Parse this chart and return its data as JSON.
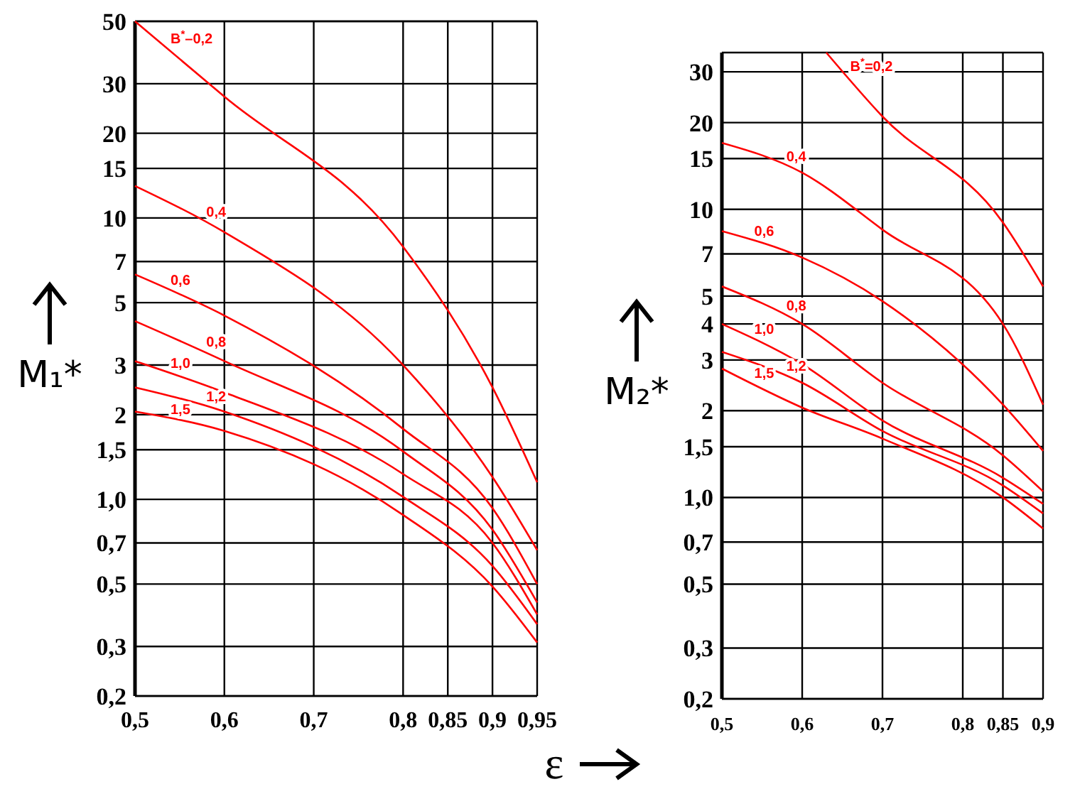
{
  "chart_data": [
    {
      "type": "line",
      "xlabel": "ε",
      "ylabel": "M₁*",
      "log": "y",
      "grid": true,
      "xlim": [
        0.5,
        0.95
      ],
      "ylim": [
        0.2,
        50
      ],
      "xticks": [
        {
          "value": 0.5,
          "label": "0,5"
        },
        {
          "value": 0.6,
          "label": "0,6"
        },
        {
          "value": 0.7,
          "label": "0,7"
        },
        {
          "value": 0.8,
          "label": "0,8"
        },
        {
          "value": 0.85,
          "label": "0,85"
        },
        {
          "value": 0.9,
          "label": "0,9"
        },
        {
          "value": 0.95,
          "label": "0,95"
        }
      ],
      "yticks": [
        {
          "value": 0.2,
          "label": "0,2"
        },
        {
          "value": 0.3,
          "label": "0,3"
        },
        {
          "value": 0.5,
          "label": "0,5"
        },
        {
          "value": 0.7,
          "label": "0,7"
        },
        {
          "value": 1,
          "label": "1,0"
        },
        {
          "value": 1.5,
          "label": "1,5"
        },
        2,
        3,
        5,
        7,
        10,
        15,
        20,
        30,
        50
      ],
      "x": [
        0.5,
        0.6,
        0.8,
        0.9,
        0.95
      ],
      "series": [
        {
          "name": "B$^{*}$–0,2",
          "color": "#ff0000",
          "values": [
            50,
            27,
            7.9,
            2.5,
            1.15
          ]
        },
        {
          "name": "0,4",
          "color": "#ff0000",
          "values": [
            13,
            8.9,
            3.0,
            1.2,
            0.66
          ]
        },
        {
          "name": "0,6",
          "color": "#ff0000",
          "values": [
            6.3,
            4.5,
            1.78,
            0.93,
            0.5
          ]
        },
        {
          "name": "0,8",
          "color": "#ff0000",
          "values": [
            4.3,
            3.1,
            1.48,
            0.78,
            0.43
          ]
        },
        {
          "name": "1,0",
          "color": "#ff0000",
          "values": [
            3.1,
            2.4,
            1.23,
            0.7,
            0.39
          ]
        },
        {
          "name": "1,2",
          "color": "#ff0000",
          "values": [
            2.5,
            2.05,
            1.02,
            0.58,
            0.36
          ]
        },
        {
          "name": "1,5",
          "color": "#ff0000",
          "values": [
            2.05,
            1.75,
            0.88,
            0.49,
            0.31
          ]
        }
      ]
    },
    {
      "type": "line",
      "ylabel": "M₂*",
      "log": "y",
      "grid": true,
      "xlim": [
        0.5,
        0.9
      ],
      "ylim": [
        0.2,
        35
      ],
      "xticks": [
        {
          "value": 0.5,
          "label": "0,5"
        },
        {
          "value": 0.6,
          "label": "0,6"
        },
        {
          "value": 0.7,
          "label": "0,7"
        },
        {
          "value": 0.8,
          "label": "0,8"
        },
        {
          "value": 0.85,
          "label": "0,85"
        },
        {
          "value": 0.9,
          "label": "0,9"
        }
      ],
      "yticks": [
        {
          "value": 0.2,
          "label": "0,2"
        },
        {
          "value": 0.3,
          "label": "0,3"
        },
        {
          "value": 0.5,
          "label": "0,5"
        },
        {
          "value": 0.7,
          "label": "0,7"
        },
        {
          "value": 1,
          "label": "1,0"
        },
        {
          "value": 1.5,
          "label": "1,5"
        },
        2,
        3,
        4,
        5,
        7,
        10,
        15,
        20,
        30
      ],
      "x": [
        0.5,
        0.6,
        0.7,
        0.85,
        0.9
      ],
      "series": [
        {
          "name": "B$^{*}$=0,2",
          "color": "#ff0000",
          "x": [
            0.63,
            0.7,
            0.85,
            0.9
          ],
          "values": [
            35,
            21,
            9.0,
            5.4
          ]
        },
        {
          "name": "0,4",
          "color": "#ff0000",
          "values": [
            17,
            13.4,
            8.5,
            4.0,
            2.1
          ]
        },
        {
          "name": "0,6",
          "color": "#ff0000",
          "values": [
            8.4,
            6.8,
            4.8,
            2.1,
            1.45
          ]
        },
        {
          "name": "0,8",
          "color": "#ff0000",
          "values": [
            5.4,
            4.0,
            2.5,
            1.4,
            1.05
          ]
        },
        {
          "name": "1,0",
          "color": "#ff0000",
          "values": [
            4.0,
            2.9,
            1.85,
            1.17,
            0.95
          ]
        },
        {
          "name": "1,2",
          "color": "#ff0000",
          "values": [
            3.2,
            2.5,
            1.7,
            1.1,
            0.88
          ]
        },
        {
          "name": "1,5",
          "color": "#ff0000",
          "values": [
            2.8,
            2.05,
            1.6,
            1.0,
            0.78
          ]
        }
      ]
    }
  ]
}
